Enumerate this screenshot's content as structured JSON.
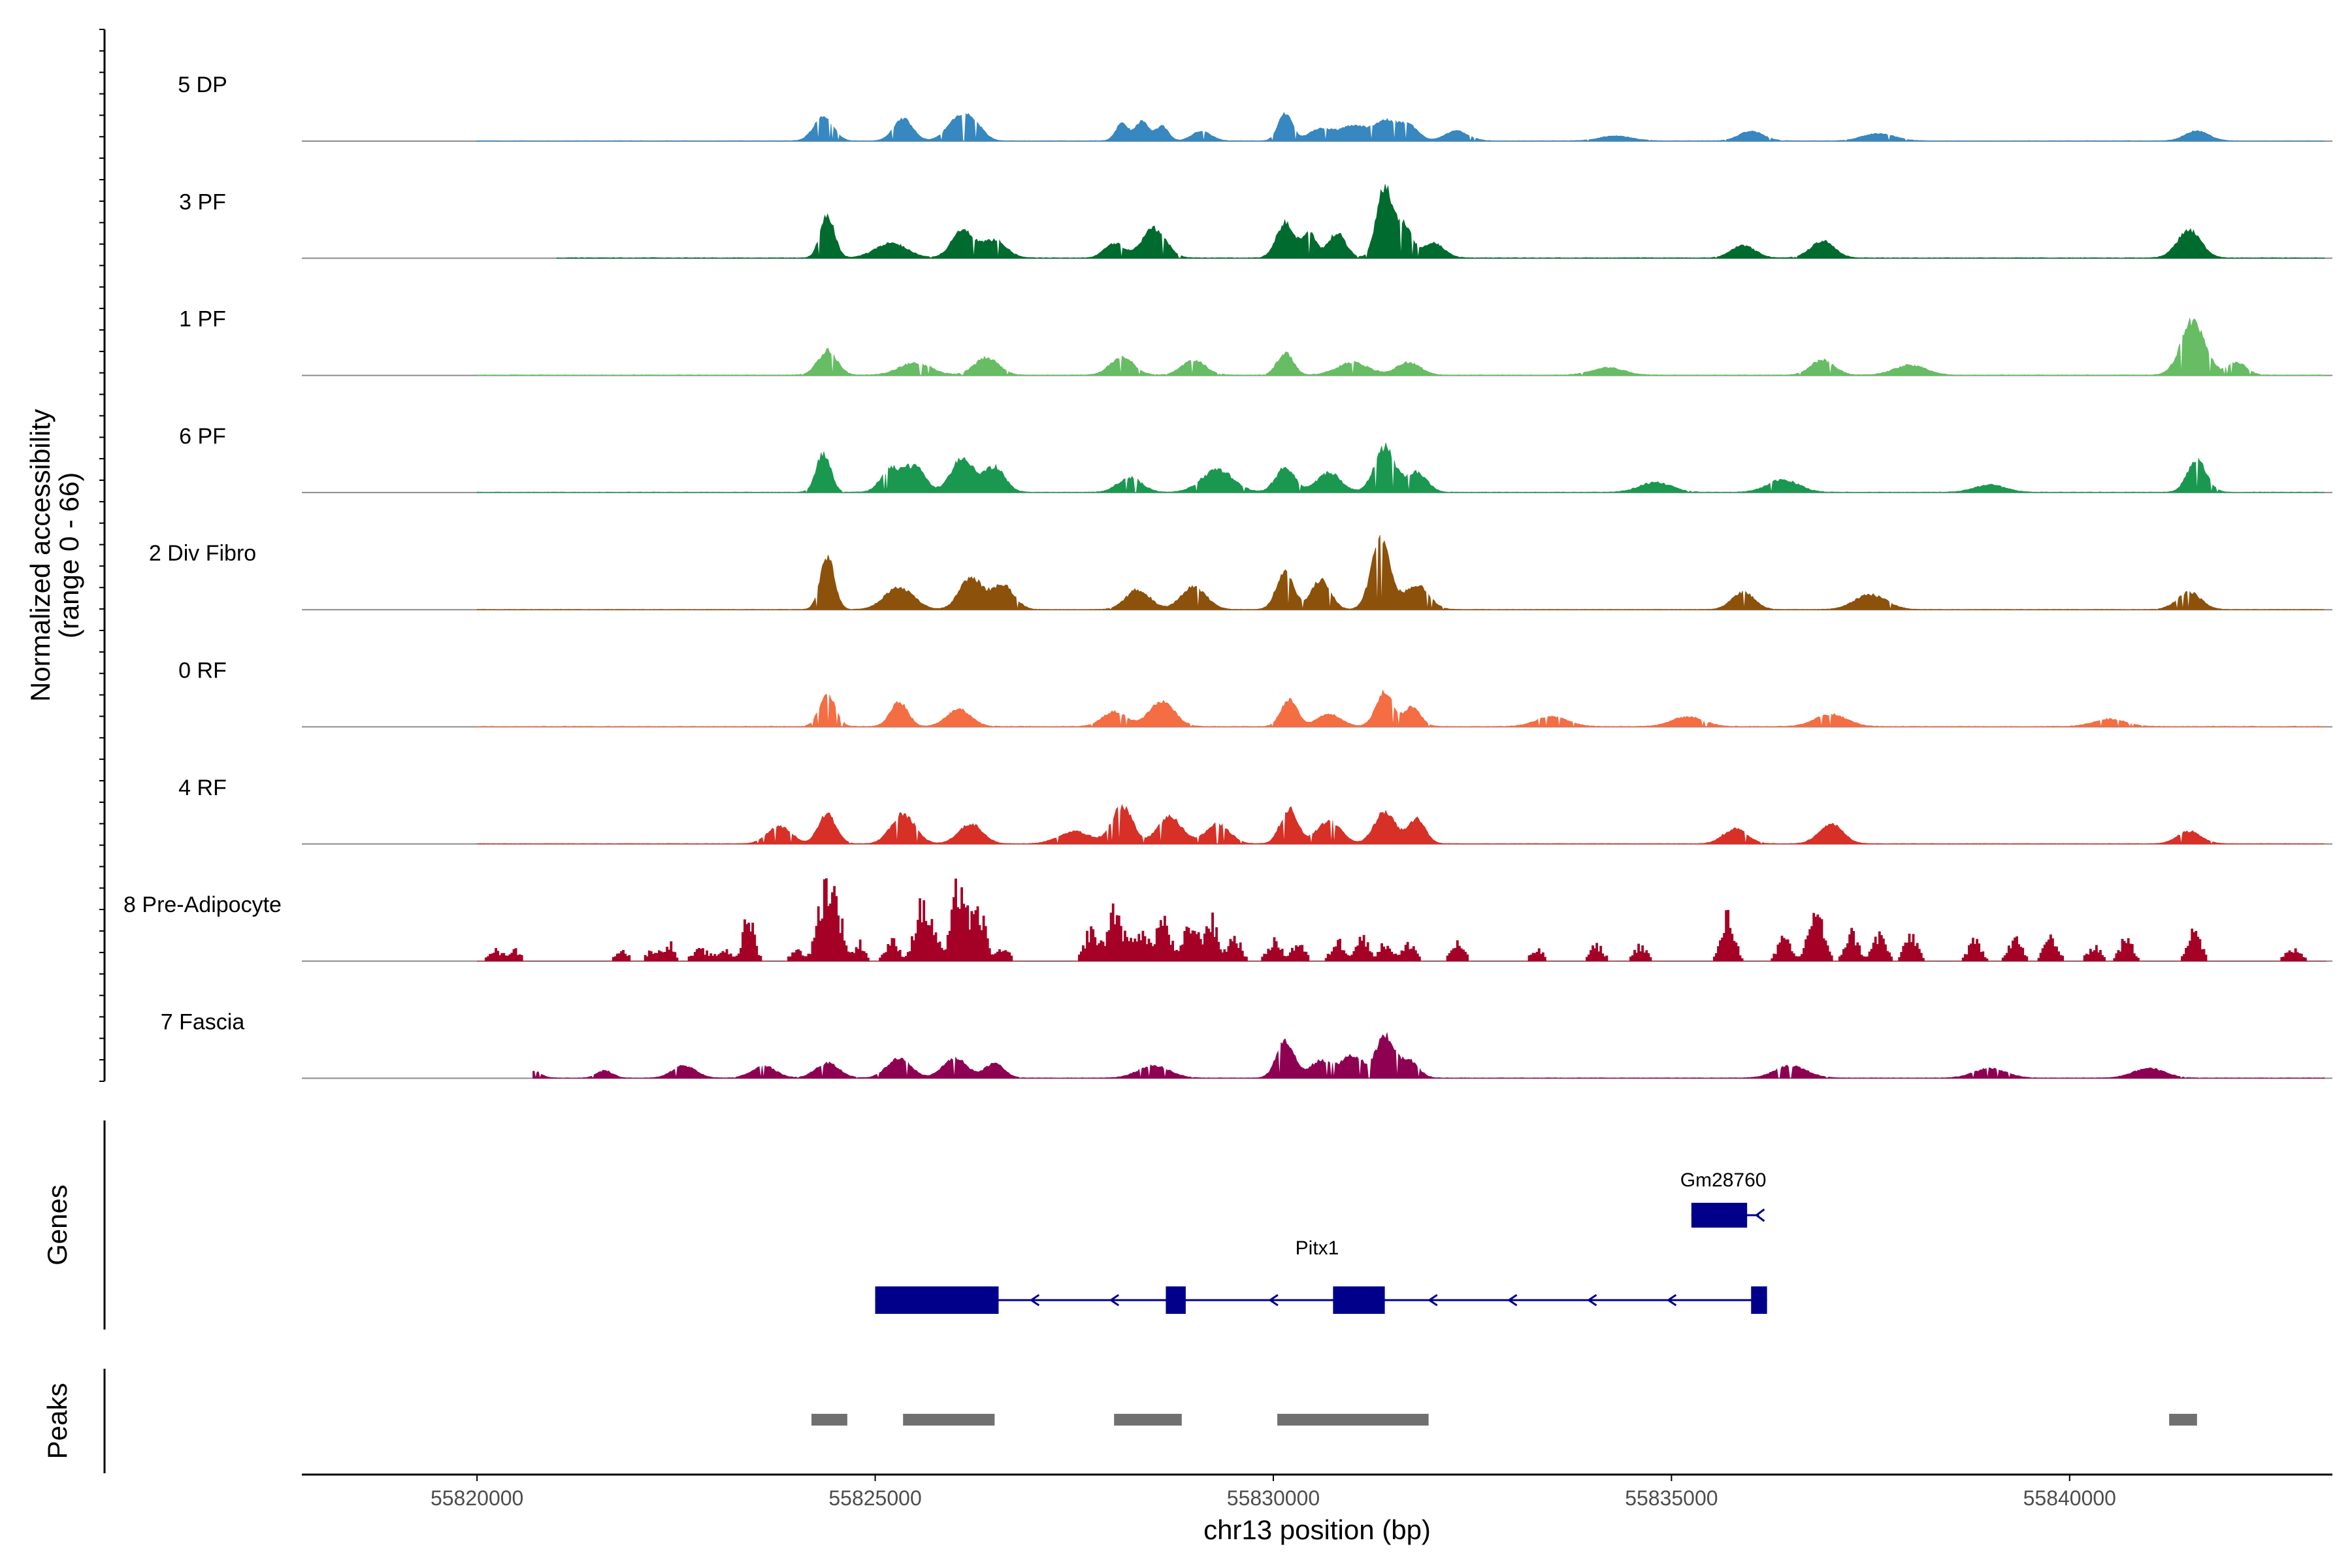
{
  "chart_data": {
    "type": "area",
    "title": "",
    "ylabel_line1": "Normalized accessibility",
    "ylabel_line2": "(range 0 - 66)",
    "ymax": 66,
    "xlabel": "chr13 position (bp)",
    "xlim": [
      55817800,
      55843300
    ],
    "x_ticks": [
      "55820000",
      "55825000",
      "55830000",
      "55835000",
      "55840000"
    ],
    "x_tick_values": [
      55820000,
      55825000,
      55830000,
      55835000,
      55840000
    ],
    "data_range": [
      55820000,
      55843200
    ],
    "tracks": [
      {
        "name": "5 DP",
        "color": "#3787C0",
        "style": "smooth",
        "base": 0.06,
        "noise": 0.14,
        "coverage": [
          55820000,
          55843200
        ],
        "peaks": [
          [
            55824350,
            10,
            120
          ],
          [
            55825350,
            9,
            120
          ],
          [
            55826050,
            9,
            150
          ],
          [
            55826250,
            5,
            120
          ],
          [
            55828100,
            7,
            80
          ],
          [
            55828350,
            8,
            80
          ],
          [
            55828600,
            6,
            80
          ],
          [
            55829100,
            4,
            120
          ],
          [
            55830150,
            11,
            90
          ],
          [
            55830600,
            5,
            150
          ],
          [
            55831000,
            6,
            150
          ],
          [
            55831400,
            8,
            150
          ],
          [
            55831700,
            6,
            120
          ],
          [
            55832300,
            4,
            150
          ],
          [
            55834300,
            2,
            200
          ],
          [
            55836000,
            4,
            150
          ],
          [
            55837600,
            3,
            200
          ],
          [
            55841600,
            4,
            150
          ]
        ]
      },
      {
        "name": "3 PF",
        "color": "#006B2E",
        "style": "smooth",
        "base": 0.08,
        "noise": 0.2,
        "coverage": [
          55821000,
          55843200
        ],
        "peaks": [
          [
            55824400,
            17,
            90
          ],
          [
            55825200,
            6,
            200
          ],
          [
            55826100,
            11,
            140
          ],
          [
            55826500,
            7,
            150
          ],
          [
            55828000,
            6,
            120
          ],
          [
            55828500,
            12,
            150
          ],
          [
            55830150,
            14,
            110
          ],
          [
            55830450,
            10,
            90
          ],
          [
            55830800,
            10,
            110
          ],
          [
            55831400,
            29,
            100
          ],
          [
            55831650,
            13,
            90
          ],
          [
            55832000,
            6,
            140
          ],
          [
            55835900,
            5,
            150
          ],
          [
            55836900,
            7,
            150
          ],
          [
            55841500,
            11,
            150
          ]
        ]
      },
      {
        "name": "1 PF",
        "color": "#66BD63",
        "style": "smooth",
        "base": 0.08,
        "noise": 0.22,
        "coverage": [
          55820000,
          55843200
        ],
        "peaks": [
          [
            55824400,
            10,
            120
          ],
          [
            55825500,
            5,
            200
          ],
          [
            55826400,
            7,
            150
          ],
          [
            55828100,
            7,
            150
          ],
          [
            55829000,
            6,
            150
          ],
          [
            55830150,
            9,
            100
          ],
          [
            55831000,
            5,
            200
          ],
          [
            55831700,
            5,
            150
          ],
          [
            55834200,
            3,
            200
          ],
          [
            55836900,
            6,
            150
          ],
          [
            55838000,
            4,
            200
          ],
          [
            55841550,
            22,
            150
          ],
          [
            55842100,
            5,
            120
          ]
        ]
      },
      {
        "name": "6 PF",
        "color": "#1A9850",
        "style": "smooth",
        "base": 0.07,
        "noise": 0.22,
        "coverage": [
          55820000,
          55843200
        ],
        "peaks": [
          [
            55824350,
            16,
            90
          ],
          [
            55825200,
            9,
            130
          ],
          [
            55825500,
            10,
            130
          ],
          [
            55826100,
            14,
            140
          ],
          [
            55826500,
            10,
            130
          ],
          [
            55828200,
            6,
            150
          ],
          [
            55829300,
            9,
            200
          ],
          [
            55830150,
            10,
            120
          ],
          [
            55830700,
            8,
            150
          ],
          [
            55831400,
            18,
            130
          ],
          [
            55831800,
            8,
            130
          ],
          [
            55834800,
            4,
            200
          ],
          [
            55836400,
            5,
            200
          ],
          [
            55839000,
            3,
            200
          ],
          [
            55841600,
            13,
            120
          ]
        ]
      },
      {
        "name": "2 Div Fibro",
        "color": "#8C510A",
        "style": "smooth",
        "base": 0.05,
        "noise": 0.2,
        "coverage": [
          55820000,
          55843200
        ],
        "peaks": [
          [
            55824400,
            21,
            90
          ],
          [
            55825300,
            9,
            180
          ],
          [
            55826200,
            13,
            140
          ],
          [
            55826600,
            10,
            140
          ],
          [
            55828300,
            8,
            150
          ],
          [
            55829000,
            9,
            160
          ],
          [
            55830150,
            15,
            110
          ],
          [
            55830600,
            12,
            120
          ],
          [
            55831350,
            28,
            120
          ],
          [
            55831800,
            10,
            150
          ],
          [
            55835900,
            7,
            140
          ],
          [
            55837500,
            6,
            200
          ],
          [
            55841500,
            7,
            150
          ]
        ]
      },
      {
        "name": "0 RF",
        "color": "#F46D43",
        "style": "smooth",
        "base": 0.08,
        "noise": 0.18,
        "coverage": [
          55820000,
          55843200
        ],
        "peaks": [
          [
            55824400,
            13,
            100
          ],
          [
            55825300,
            10,
            110
          ],
          [
            55826050,
            7,
            150
          ],
          [
            55828000,
            6,
            150
          ],
          [
            55828600,
            10,
            160
          ],
          [
            55830200,
            11,
            100
          ],
          [
            55830700,
            5,
            150
          ],
          [
            55831400,
            14,
            110
          ],
          [
            55831750,
            8,
            100
          ],
          [
            55833500,
            4,
            200
          ],
          [
            55835200,
            4,
            200
          ],
          [
            55837000,
            5,
            200
          ],
          [
            55840500,
            3,
            200
          ]
        ]
      },
      {
        "name": "4 RF",
        "color": "#D73027",
        "style": "smooth",
        "base": 0.06,
        "noise": 0.2,
        "coverage": [
          55820000,
          55843200
        ],
        "peaks": [
          [
            55823800,
            7,
            150
          ],
          [
            55824400,
            12,
            110
          ],
          [
            55825350,
            12,
            150
          ],
          [
            55826200,
            8,
            150
          ],
          [
            55827500,
            5,
            200
          ],
          [
            55828100,
            15,
            130
          ],
          [
            55828700,
            11,
            150
          ],
          [
            55829300,
            8,
            150
          ],
          [
            55830200,
            14,
            110
          ],
          [
            55830700,
            9,
            150
          ],
          [
            55831400,
            13,
            130
          ],
          [
            55831800,
            10,
            110
          ],
          [
            55835800,
            6,
            150
          ],
          [
            55837000,
            8,
            150
          ],
          [
            55841500,
            5,
            150
          ]
        ]
      },
      {
        "name": "8 Pre-Adipocyte",
        "color": "#A50026",
        "style": "blocky",
        "base": 0,
        "noise": 0.35,
        "coverage": [
          55820000,
          55843200
        ],
        "peaks": [
          [
            55820200,
            5,
            80
          ],
          [
            55820450,
            5,
            80
          ],
          [
            55821800,
            5,
            80
          ],
          [
            55822200,
            5,
            80
          ],
          [
            55822400,
            8,
            60
          ],
          [
            55822800,
            5,
            100
          ],
          [
            55823100,
            5,
            80
          ],
          [
            55823400,
            20,
            70
          ],
          [
            55824000,
            5,
            80
          ],
          [
            55824350,
            29,
            90
          ],
          [
            55824500,
            21,
            90
          ],
          [
            55824800,
            8,
            60
          ],
          [
            55825200,
            9,
            80
          ],
          [
            55825550,
            21,
            80
          ],
          [
            55825700,
            14,
            80
          ],
          [
            55826050,
            36,
            90
          ],
          [
            55826300,
            21,
            80
          ],
          [
            55826600,
            5,
            80
          ],
          [
            55827700,
            14,
            80
          ],
          [
            55828000,
            24,
            90
          ],
          [
            55828300,
            14,
            90
          ],
          [
            55828600,
            19,
            90
          ],
          [
            55828950,
            17,
            80
          ],
          [
            55829200,
            19,
            80
          ],
          [
            55829500,
            11,
            80
          ],
          [
            55830000,
            9,
            80
          ],
          [
            55830300,
            8,
            80
          ],
          [
            55830800,
            9,
            80
          ],
          [
            55831100,
            11,
            80
          ],
          [
            55831400,
            8,
            80
          ],
          [
            55831700,
            8,
            80
          ],
          [
            55832300,
            8,
            80
          ],
          [
            55833300,
            5,
            80
          ],
          [
            55834050,
            7,
            80
          ],
          [
            55834600,
            7,
            80
          ],
          [
            55835700,
            20,
            80
          ],
          [
            55836400,
            10,
            80
          ],
          [
            55836800,
            24,
            90
          ],
          [
            55837250,
            13,
            80
          ],
          [
            55837600,
            12,
            80
          ],
          [
            55838000,
            12,
            80
          ],
          [
            55838800,
            9,
            80
          ],
          [
            55839300,
            11,
            80
          ],
          [
            55839750,
            11,
            80
          ],
          [
            55840300,
            7,
            80
          ],
          [
            55840700,
            10,
            80
          ],
          [
            55841550,
            16,
            80
          ],
          [
            55842800,
            5,
            100
          ]
        ]
      },
      {
        "name": "7 Fascia",
        "color": "#8E0152",
        "style": "smooth",
        "base": 0.06,
        "noise": 0.2,
        "coverage": [
          55820700,
          55843200
        ],
        "peaks": [
          [
            55820700,
            3,
            100
          ],
          [
            55821600,
            3,
            100
          ],
          [
            55822600,
            5,
            150
          ],
          [
            55823600,
            5,
            150
          ],
          [
            55824400,
            6,
            150
          ],
          [
            55825300,
            8,
            150
          ],
          [
            55826000,
            8,
            150
          ],
          [
            55826500,
            6,
            120
          ],
          [
            55828500,
            5,
            200
          ],
          [
            55830150,
            15,
            110
          ],
          [
            55830600,
            7,
            140
          ],
          [
            55831000,
            9,
            140
          ],
          [
            55831400,
            17,
            110
          ],
          [
            55831700,
            7,
            120
          ],
          [
            55836500,
            5,
            200
          ],
          [
            55839000,
            4,
            200
          ],
          [
            55841000,
            4,
            200
          ]
        ]
      }
    ],
    "genes": {
      "title": "Genes",
      "transcripts": [
        {
          "name": "Pitx1",
          "strand": "-",
          "start": 55825000,
          "end": 55836200,
          "exons": [
            [
              55825000,
              55826550
            ],
            [
              55828650,
              55828900
            ],
            [
              55830750,
              55831400
            ],
            [
              55836000,
              55836200
            ]
          ]
        },
        {
          "name": "Gm28760",
          "strand": "-",
          "start": 55835250,
          "end": 55836100,
          "exons": [
            [
              55835250,
              55835950
            ]
          ]
        }
      ]
    },
    "peaks_track": {
      "title": "Peaks",
      "regions": [
        [
          55824200,
          55824650
        ],
        [
          55825350,
          55826500
        ],
        [
          55828000,
          55828850
        ],
        [
          55830050,
          55831950
        ],
        [
          55841250,
          55841600
        ]
      ]
    }
  }
}
